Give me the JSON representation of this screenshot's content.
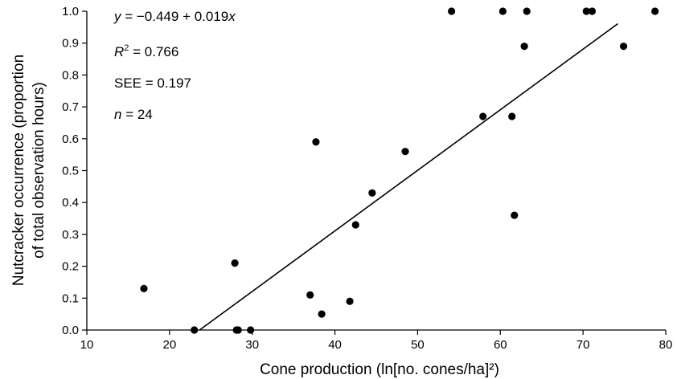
{
  "chart_data": {
    "type": "scatter",
    "title": "",
    "xlabel": "Cone production (ln[no. cones/ha]²)",
    "ylabel_line1": "Nutcracker occurrence (proportion",
    "ylabel_line2": "of total observation hours)",
    "xlim": [
      10,
      80
    ],
    "ylim": [
      0,
      1.0
    ],
    "x_ticks": [
      "10",
      "20",
      "30",
      "40",
      "50",
      "60",
      "70",
      "80"
    ],
    "y_ticks": [
      "0.0",
      "0.1",
      "0.2",
      "0.3",
      "0.4",
      "0.5",
      "0.6",
      "0.7",
      "0.8",
      "0.9",
      "1.0"
    ],
    "grid": false,
    "points": [
      {
        "x": 16.9,
        "y": 0.13
      },
      {
        "x": 23.0,
        "y": 0.0
      },
      {
        "x": 27.9,
        "y": 0.21
      },
      {
        "x": 28.1,
        "y": 0.0
      },
      {
        "x": 28.3,
        "y": 0.0
      },
      {
        "x": 29.8,
        "y": 0.0
      },
      {
        "x": 37.0,
        "y": 0.11
      },
      {
        "x": 37.7,
        "y": 0.59
      },
      {
        "x": 38.4,
        "y": 0.05
      },
      {
        "x": 41.8,
        "y": 0.09
      },
      {
        "x": 42.5,
        "y": 0.33
      },
      {
        "x": 44.5,
        "y": 0.43
      },
      {
        "x": 48.5,
        "y": 0.56
      },
      {
        "x": 54.1,
        "y": 1.0
      },
      {
        "x": 57.9,
        "y": 0.67
      },
      {
        "x": 60.3,
        "y": 1.0
      },
      {
        "x": 61.4,
        "y": 0.67
      },
      {
        "x": 61.7,
        "y": 0.36
      },
      {
        "x": 62.9,
        "y": 0.89
      },
      {
        "x": 63.2,
        "y": 1.0
      },
      {
        "x": 70.4,
        "y": 1.0
      },
      {
        "x": 71.1,
        "y": 1.0
      },
      {
        "x": 74.9,
        "y": 0.89
      },
      {
        "x": 78.7,
        "y": 1.0
      }
    ],
    "regression": {
      "intercept": -0.449,
      "slope": 0.019,
      "x_start": 23.6,
      "x_end": 74.2
    },
    "annotations": {
      "equation_prefix": "y",
      "equation_rest": " = −0.449 + 0.019",
      "equation_var": "x",
      "r2_label": "R",
      "r2_sup": "2",
      "r2_value": " = 0.766",
      "see": "SEE = 0.197",
      "n_label": "n",
      "n_value": " = 24"
    }
  }
}
